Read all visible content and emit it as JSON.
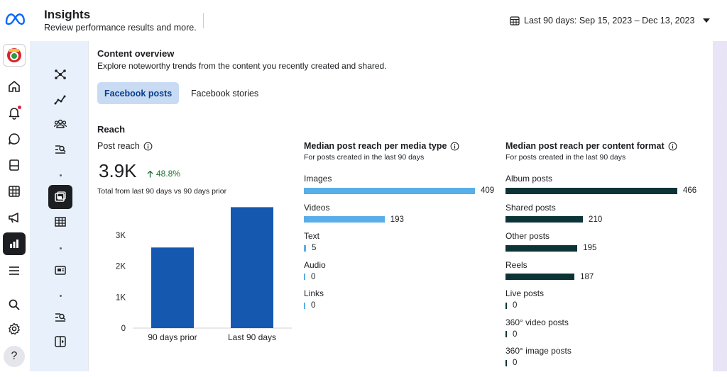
{
  "header": {
    "title": "Insights",
    "subtitle": "Review performance results and more.",
    "date_range": "Last 90 days: Sep 15, 2023 – Dec 13, 2023"
  },
  "rail": {
    "icons": [
      "page-avatar",
      "home-icon",
      "bell-icon",
      "chat-icon",
      "pages-icon",
      "table-icon",
      "megaphone-icon",
      "insights-icon",
      "menu-icon",
      "search-icon",
      "gear-icon",
      "help-icon"
    ],
    "help_label": "?"
  },
  "subnav": {
    "icons": [
      "overview-icon",
      "trend-icon",
      "audience-icon",
      "search-list-icon",
      "content-icon",
      "table-icon",
      "media-icon",
      "search-list-icon",
      "compare-icon"
    ]
  },
  "content": {
    "title": "Content overview",
    "description": "Explore noteworthy trends from the content you recently created and shared.",
    "tabs": [
      {
        "label": "Facebook posts",
        "active": true
      },
      {
        "label": "Facebook stories",
        "active": false
      }
    ]
  },
  "reach": {
    "heading": "Reach",
    "post_reach": {
      "title": "Post reach",
      "value": "3.9K",
      "delta": "48.8%",
      "note": "Total from last 90 days vs 90 days prior"
    }
  },
  "chart_data": [
    {
      "type": "bar",
      "title": "Post reach",
      "categories": [
        "90 days prior",
        "Last 90 days"
      ],
      "values": [
        2600,
        3900
      ],
      "ylim": [
        0,
        4000
      ],
      "yticks": [
        0,
        1000,
        2000,
        3000
      ],
      "ytick_labels": [
        "0",
        "1K",
        "2K",
        "3K"
      ],
      "color": "#1558b0",
      "grid": false
    },
    {
      "type": "bar",
      "orientation": "horizontal",
      "title": "Median post reach per media type",
      "note": "For posts created in the last 90 days",
      "categories": [
        "Images",
        "Videos",
        "Text",
        "Audio",
        "Links"
      ],
      "values": [
        409,
        193,
        5,
        0,
        0
      ],
      "color": "#5aaee8"
    },
    {
      "type": "bar",
      "orientation": "horizontal",
      "title": "Median post reach per content format",
      "note": "For posts created in the last 90 days",
      "categories": [
        "Album posts",
        "Shared posts",
        "Other posts",
        "Reels",
        "Live posts",
        "360° video posts",
        "360° image posts"
      ],
      "values": [
        466,
        210,
        195,
        187,
        0,
        0,
        0
      ],
      "color": "#0c3437"
    }
  ]
}
